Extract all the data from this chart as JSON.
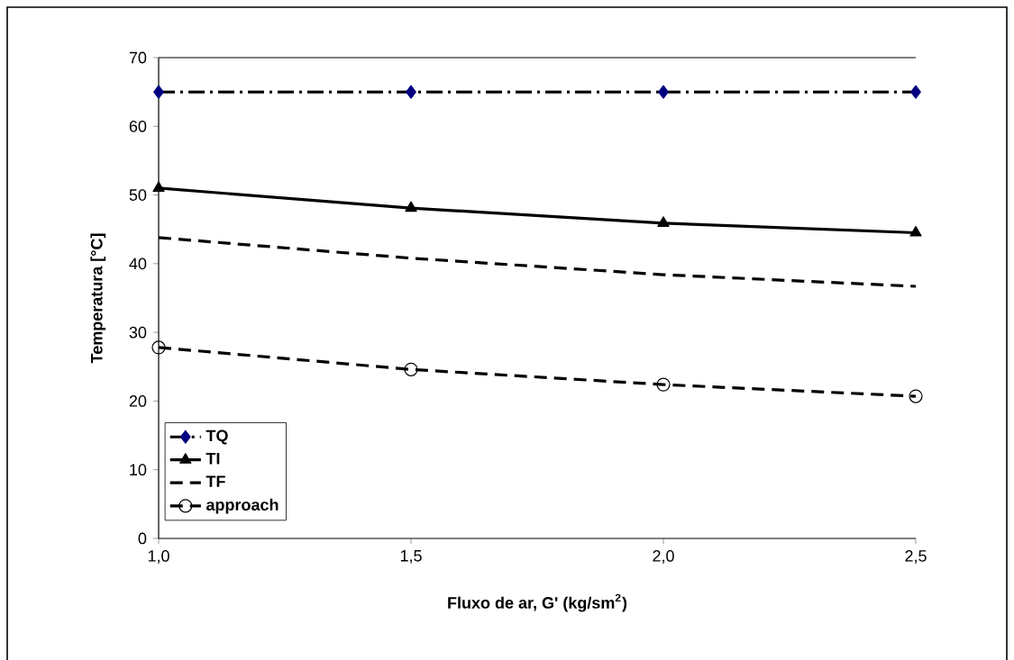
{
  "chart_data": {
    "type": "line",
    "xlabel": "Fluxo  de ar, G' (kg/sm$^{2}$)",
    "ylabel": "Temperatura [°C]",
    "x": [
      1.0,
      1.5,
      2.0,
      2.5
    ],
    "series": [
      {
        "name": "TQ",
        "color": "#000080",
        "marker": "diamond",
        "line_style": "dashdot",
        "values": [
          65,
          65,
          65,
          65
        ]
      },
      {
        "name": "TI",
        "color": "#000000",
        "marker": "triangle",
        "line_style": "solid",
        "values": [
          51.0,
          48.1,
          45.9,
          44.5
        ]
      },
      {
        "name": "TF",
        "color": "#000000",
        "marker": "none",
        "line_style": "dashed",
        "values": [
          43.8,
          40.8,
          38.4,
          36.7
        ]
      },
      {
        "name": "approach",
        "color": "#000000",
        "marker": "circle",
        "line_style": "dashed",
        "values": [
          27.8,
          24.6,
          22.4,
          20.7
        ]
      }
    ],
    "xlim": [
      1.0,
      2.5
    ],
    "xticks": [
      {
        "value": 1.0,
        "label": "1,0"
      },
      {
        "value": 1.5,
        "label": "1,5"
      },
      {
        "value": 2.0,
        "label": "2,0"
      },
      {
        "value": 2.5,
        "label": "2,5"
      }
    ],
    "ylim": [
      0,
      70
    ],
    "yticks": [
      0,
      10,
      20,
      30,
      40,
      50,
      60,
      70
    ],
    "grid": false,
    "legend": "bottom left"
  }
}
